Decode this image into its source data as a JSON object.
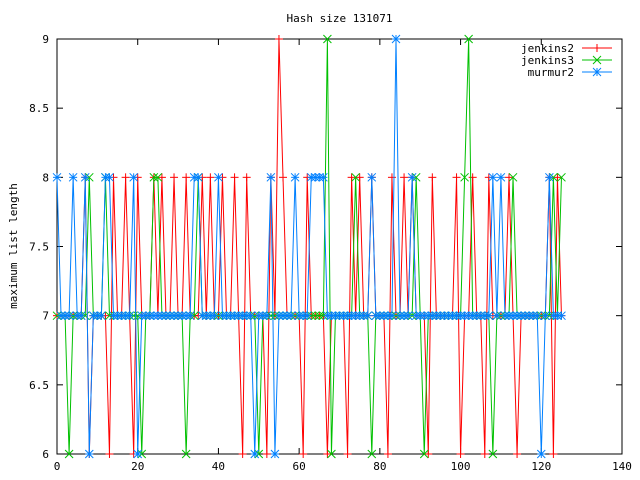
{
  "chart_data": {
    "type": "line",
    "title": "Hash size 131071",
    "xlabel": "",
    "ylabel": "maximum list length",
    "xlim": [
      0,
      140
    ],
    "ylim": [
      6,
      9
    ],
    "xticks": [
      0,
      20,
      40,
      60,
      80,
      100,
      120,
      140
    ],
    "yticks": [
      6,
      6.5,
      7,
      7.5,
      8,
      8.5,
      9
    ],
    "xtick_labels": [
      "0",
      "20",
      "40",
      "60",
      "80",
      "100",
      "120",
      "140"
    ],
    "ytick_labels": [
      "6",
      "6.5",
      "7",
      "7.5",
      "8",
      "8.5",
      "9"
    ],
    "grid": false,
    "legend_position": "top-right",
    "series": [
      {
        "name": "jenkins2",
        "color": "#ff0000",
        "marker": "plus",
        "x": [
          0,
          1,
          2,
          3,
          4,
          5,
          6,
          7,
          8,
          9,
          10,
          11,
          12,
          13,
          14,
          15,
          16,
          17,
          18,
          19,
          20,
          21,
          22,
          23,
          24,
          25,
          26,
          27,
          28,
          29,
          30,
          31,
          32,
          33,
          34,
          35,
          36,
          37,
          38,
          39,
          40,
          41,
          42,
          43,
          44,
          45,
          46,
          47,
          48,
          49,
          50,
          51,
          52,
          53,
          54,
          55,
          56,
          57,
          58,
          59,
          60,
          61,
          62,
          63,
          64,
          65,
          66,
          67,
          68,
          69,
          70,
          71,
          72,
          73,
          74,
          75,
          76,
          77,
          78,
          79,
          80,
          81,
          82,
          83,
          84,
          85,
          86,
          87,
          88,
          89,
          90,
          91,
          92,
          93,
          94,
          95,
          96,
          97,
          98,
          99,
          100,
          101,
          102,
          103,
          104,
          105,
          106,
          107,
          108,
          109,
          110,
          111,
          112,
          113,
          114,
          115,
          116,
          117,
          118,
          119,
          120,
          121,
          122,
          123,
          124,
          125
        ],
        "y": [
          7,
          7,
          7,
          7,
          7,
          7,
          7,
          8,
          6,
          7,
          7,
          7,
          7,
          6,
          8,
          7,
          7,
          8,
          7,
          6,
          8,
          7,
          7,
          7,
          8,
          7,
          8,
          7,
          7,
          8,
          7,
          7,
          8,
          7,
          7,
          7,
          8,
          7,
          8,
          7,
          7,
          8,
          7,
          7,
          8,
          7,
          6,
          8,
          7,
          7,
          7,
          7,
          6,
          8,
          7,
          9,
          8,
          7,
          7,
          7,
          7,
          6,
          8,
          7,
          7,
          7,
          7,
          6,
          7,
          7,
          7,
          7,
          6,
          8,
          7,
          8,
          7,
          7,
          8,
          7,
          7,
          7,
          6,
          8,
          7,
          7,
          8,
          7,
          8,
          7,
          7,
          7,
          6,
          8,
          7,
          7,
          7,
          7,
          7,
          8,
          6,
          7,
          7,
          8,
          7,
          7,
          6,
          8,
          7,
          7,
          7,
          7,
          8,
          7,
          6,
          7,
          7,
          7,
          7,
          7,
          7,
          7,
          8,
          6,
          8,
          7
        ]
      },
      {
        "name": "jenkins3",
        "color": "#00c000",
        "marker": "cross",
        "x": [
          0,
          1,
          2,
          3,
          4,
          5,
          6,
          7,
          8,
          9,
          10,
          11,
          12,
          13,
          14,
          15,
          16,
          17,
          18,
          19,
          20,
          21,
          22,
          23,
          24,
          25,
          26,
          27,
          28,
          29,
          30,
          31,
          32,
          33,
          34,
          35,
          36,
          37,
          38,
          39,
          40,
          41,
          42,
          43,
          44,
          45,
          46,
          47,
          48,
          49,
          50,
          51,
          52,
          53,
          54,
          55,
          56,
          57,
          58,
          59,
          60,
          61,
          62,
          63,
          64,
          65,
          66,
          67,
          68,
          69,
          70,
          71,
          72,
          73,
          74,
          75,
          76,
          77,
          78,
          79,
          80,
          81,
          82,
          83,
          84,
          85,
          86,
          87,
          88,
          89,
          90,
          91,
          92,
          93,
          94,
          95,
          96,
          97,
          98,
          99,
          100,
          101,
          102,
          103,
          104,
          105,
          106,
          107,
          108,
          109,
          110,
          111,
          112,
          113,
          114,
          115,
          116,
          117,
          118,
          119,
          120,
          121,
          122,
          123,
          124,
          125
        ],
        "y": [
          7,
          7,
          7,
          6,
          7,
          7,
          7,
          7,
          8,
          7,
          7,
          7,
          8,
          7,
          7,
          7,
          7,
          7,
          7,
          7,
          7,
          6,
          7,
          7,
          8,
          8,
          7,
          7,
          7,
          7,
          7,
          7,
          6,
          7,
          7,
          8,
          7,
          7,
          7,
          7,
          7,
          7,
          7,
          7,
          7,
          7,
          7,
          7,
          7,
          7,
          6,
          7,
          7,
          7,
          7,
          7,
          7,
          7,
          7,
          7,
          7,
          7,
          7,
          7,
          7,
          7,
          7,
          9,
          6,
          7,
          7,
          7,
          7,
          7,
          8,
          7,
          7,
          7,
          6,
          7,
          7,
          7,
          7,
          7,
          7,
          7,
          7,
          7,
          7,
          8,
          7,
          6,
          7,
          7,
          7,
          7,
          7,
          7,
          7,
          7,
          7,
          8,
          9,
          7,
          7,
          7,
          7,
          7,
          6,
          7,
          7,
          7,
          7,
          8,
          7,
          7,
          7,
          7,
          7,
          7,
          7,
          7,
          7,
          8,
          7,
          8
        ]
      },
      {
        "name": "murmur2",
        "color": "#0080ff",
        "marker": "star",
        "x": [
          0,
          1,
          2,
          3,
          4,
          5,
          6,
          7,
          8,
          9,
          10,
          11,
          12,
          13,
          14,
          15,
          16,
          17,
          18,
          19,
          20,
          21,
          22,
          23,
          24,
          25,
          26,
          27,
          28,
          29,
          30,
          31,
          32,
          33,
          34,
          35,
          36,
          37,
          38,
          39,
          40,
          41,
          42,
          43,
          44,
          45,
          46,
          47,
          48,
          49,
          50,
          51,
          52,
          53,
          54,
          55,
          56,
          57,
          58,
          59,
          60,
          61,
          62,
          63,
          64,
          65,
          66,
          67,
          68,
          69,
          70,
          71,
          72,
          73,
          74,
          75,
          76,
          77,
          78,
          79,
          80,
          81,
          82,
          83,
          84,
          85,
          86,
          87,
          88,
          89,
          90,
          91,
          92,
          93,
          94,
          95,
          96,
          97,
          98,
          99,
          100,
          101,
          102,
          103,
          104,
          105,
          106,
          107,
          108,
          109,
          110,
          111,
          112,
          113,
          114,
          115,
          116,
          117,
          118,
          119,
          120,
          121,
          122,
          123,
          124,
          125
        ],
        "y": [
          8,
          7,
          7,
          7,
          8,
          7,
          7,
          8,
          6,
          7,
          7,
          7,
          8,
          8,
          7,
          7,
          7,
          7,
          7,
          8,
          6,
          7,
          7,
          7,
          7,
          7,
          7,
          7,
          7,
          7,
          7,
          7,
          7,
          7,
          8,
          8,
          7,
          7,
          7,
          7,
          8,
          7,
          7,
          7,
          7,
          7,
          7,
          7,
          7,
          6,
          7,
          7,
          7,
          8,
          6,
          7,
          7,
          7,
          7,
          8,
          7,
          7,
          7,
          8,
          8,
          8,
          8,
          7,
          7,
          7,
          7,
          7,
          7,
          7,
          7,
          7,
          7,
          7,
          8,
          7,
          7,
          7,
          7,
          7,
          9,
          7,
          7,
          7,
          8,
          7,
          7,
          7,
          7,
          7,
          7,
          7,
          7,
          7,
          7,
          7,
          7,
          7,
          7,
          7,
          7,
          7,
          7,
          7,
          8,
          7,
          8,
          7,
          7,
          7,
          7,
          7,
          7,
          7,
          7,
          7,
          6,
          7,
          8,
          7,
          7,
          7
        ]
      }
    ]
  }
}
